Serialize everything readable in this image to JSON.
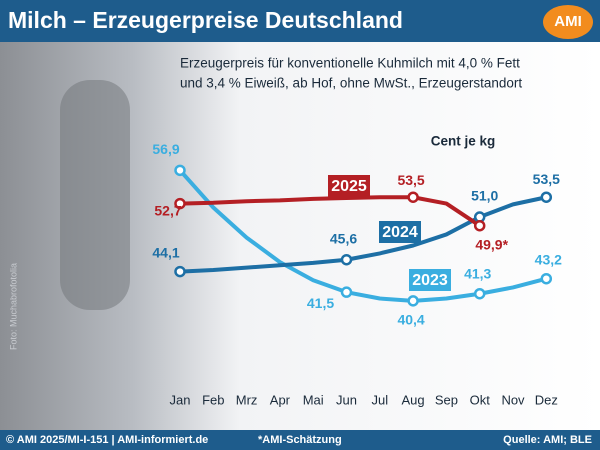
{
  "chart_data": {
    "type": "line",
    "title": "Milch – Erzeugerpreise Deutschland",
    "logo": "AMI",
    "subtitle": [
      "Erzeugerpreis für konventionelle Kuhmilch mit 4,0 % Fett",
      "und 3,4 % Eiweiß, ab Hof, ohne MwSt., Erzeugerstandort"
    ],
    "unit_label": "Cent je kg",
    "categories": [
      "Jan",
      "Feb",
      "Mrz",
      "Apr",
      "Mai",
      "Jun",
      "Jul",
      "Aug",
      "Sep",
      "Okt",
      "Nov",
      "Dez"
    ],
    "ylim": [
      28.5,
      62
    ],
    "series": [
      {
        "name": "2023",
        "color": "#3aaee0",
        "values": [
          56.9,
          52.2,
          48.4,
          45.3,
          43.0,
          41.5,
          40.7,
          40.4,
          40.7,
          41.3,
          42.1,
          43.2
        ],
        "value_labels": [
          "56,9",
          null,
          null,
          null,
          null,
          "41,5",
          null,
          "40,4",
          null,
          "41,3",
          null,
          "43,2"
        ]
      },
      {
        "name": "2024",
        "color": "#1d6fa5",
        "values": [
          44.1,
          44.3,
          44.6,
          44.9,
          45.2,
          45.6,
          46.4,
          47.4,
          48.8,
          51.0,
          52.6,
          53.5
        ],
        "value_labels": [
          "44,1",
          null,
          null,
          null,
          null,
          "45,6",
          null,
          null,
          null,
          "51,0",
          null,
          "53,5"
        ]
      },
      {
        "name": "2025",
        "color": "#b41f24",
        "values": [
          52.7,
          52.8,
          53.0,
          53.1,
          53.3,
          53.4,
          53.5,
          53.5,
          52.7,
          49.9,
          null,
          null
        ],
        "value_labels": [
          "52,7",
          null,
          null,
          null,
          null,
          null,
          null,
          "53,5",
          null,
          "49,9*",
          null,
          null
        ]
      }
    ],
    "footer": {
      "left": "© AMI 2025/MI-I-151 | AMI-informiert.de",
      "note": "*AMI-Schätzung",
      "source": "Quelle: AMI; BLE"
    },
    "photo_credit": "Foto: Muchabrofotolia"
  }
}
